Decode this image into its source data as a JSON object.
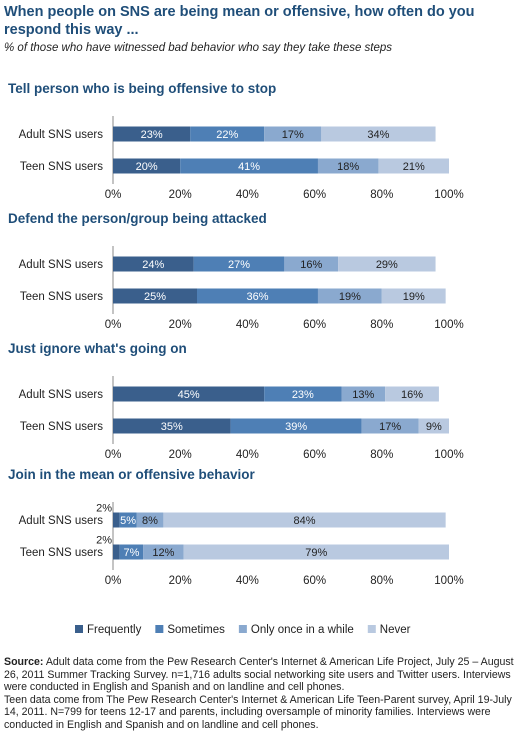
{
  "title": "When people on SNS are being mean or offensive, how often do you respond this way ...",
  "subtitle": "% of those who have witnessed bad behavior who say they take these steps",
  "source": {
    "label": "Source:",
    "text_adult": "Adult data come from the Pew Research Center's Internet & American Life Project, July 25 – August 26, 2011 Summer Tracking Survey. n=1,716 adults social networking site users and Twitter users. Interviews were conducted in English and Spanish and on landline and cell phones.",
    "text_teen": "Teen data come from The Pew Research Center's Internet & American Life Teen-Parent survey, April 19-July 14, 2011. N=799 for teens 12-17 and parents, including oversample of minority families. Interviews were conducted in English and Spanish and on landline and cell phones."
  },
  "colors": {
    "Frequently": "#3a5f8c",
    "Sometimes": "#4e7fb5",
    "Only once in a while": "#8aa9cf",
    "Never": "#b9c9e0",
    "title": "#1f4e79"
  },
  "chart_data": [
    {
      "type": "bar",
      "orientation": "horizontal",
      "stacked": true,
      "title": "Tell person who is being offensive to stop",
      "categories": [
        "Adult SNS users",
        "Teen SNS users"
      ],
      "series": [
        {
          "name": "Frequently",
          "values": [
            23,
            20
          ]
        },
        {
          "name": "Sometimes",
          "values": [
            22,
            41
          ]
        },
        {
          "name": "Only once in a while",
          "values": [
            17,
            18
          ]
        },
        {
          "name": "Never",
          "values": [
            34,
            21
          ]
        }
      ],
      "xlim": [
        0,
        100
      ],
      "xticks": [
        "0%",
        "20%",
        "40%",
        "60%",
        "80%",
        "100%"
      ]
    },
    {
      "type": "bar",
      "orientation": "horizontal",
      "stacked": true,
      "title": "Defend the person/group being attacked",
      "categories": [
        "Adult SNS users",
        "Teen SNS users"
      ],
      "series": [
        {
          "name": "Frequently",
          "values": [
            24,
            25
          ]
        },
        {
          "name": "Sometimes",
          "values": [
            27,
            36
          ]
        },
        {
          "name": "Only once in a while",
          "values": [
            16,
            19
          ]
        },
        {
          "name": "Never",
          "values": [
            29,
            19
          ]
        }
      ],
      "xlim": [
        0,
        100
      ],
      "xticks": [
        "0%",
        "20%",
        "40%",
        "60%",
        "80%",
        "100%"
      ]
    },
    {
      "type": "bar",
      "orientation": "horizontal",
      "stacked": true,
      "title": "Just ignore what's going on",
      "categories": [
        "Adult SNS users",
        "Teen SNS users"
      ],
      "series": [
        {
          "name": "Frequently",
          "values": [
            45,
            35
          ]
        },
        {
          "name": "Sometimes",
          "values": [
            23,
            39
          ]
        },
        {
          "name": "Only once in a while",
          "values": [
            13,
            17
          ]
        },
        {
          "name": "Never",
          "values": [
            16,
            9
          ]
        }
      ],
      "xlim": [
        0,
        100
      ],
      "xticks": [
        "0%",
        "20%",
        "40%",
        "60%",
        "80%",
        "100%"
      ]
    },
    {
      "type": "bar",
      "orientation": "horizontal",
      "stacked": true,
      "title": "Join in the mean or offensive behavior",
      "categories": [
        "Adult SNS users",
        "Teen SNS users"
      ],
      "series": [
        {
          "name": "Frequently",
          "values": [
            2,
            2
          ]
        },
        {
          "name": "Sometimes",
          "values": [
            5,
            7
          ]
        },
        {
          "name": "Only once in a while",
          "values": [
            8,
            12
          ]
        },
        {
          "name": "Never",
          "values": [
            84,
            79
          ]
        }
      ],
      "xlim": [
        0,
        100
      ],
      "xticks": [
        "0%",
        "20%",
        "40%",
        "60%",
        "80%",
        "100%"
      ]
    }
  ],
  "legend": {
    "placement": "bottom",
    "items": [
      "Frequently",
      "Sometimes",
      "Only once in a while",
      "Never"
    ]
  }
}
